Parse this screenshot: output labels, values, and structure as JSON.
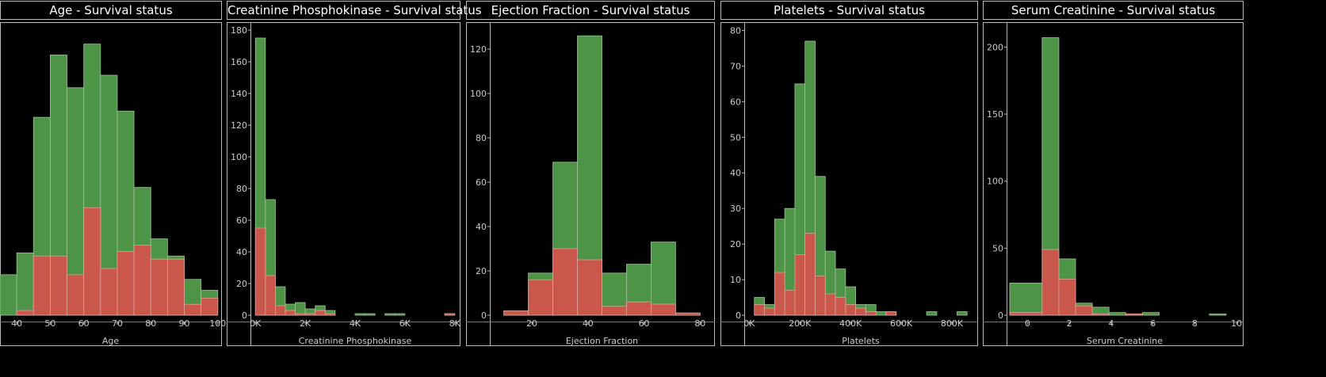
{
  "colors": {
    "survived": "#4e9447",
    "died": "#c9574c"
  },
  "chart_data": [
    {
      "type": "bar",
      "title": "Age - Survival status",
      "xlabel": "Age",
      "xlim": [
        35,
        101
      ],
      "ylim": [
        0,
        185
      ],
      "x_ticks": [
        40,
        50,
        60,
        70,
        80,
        90,
        100
      ],
      "bin_edges": [
        35,
        40,
        45,
        50,
        55,
        60,
        65,
        70,
        75,
        80,
        85,
        90,
        95,
        100
      ],
      "series": [
        {
          "values": [
            26,
            40,
            127,
            167,
            146,
            174,
            154,
            131,
            82,
            49,
            38,
            23,
            16
          ]
        },
        {
          "values": [
            0,
            3,
            38,
            38,
            26,
            69,
            30,
            41,
            45,
            36,
            36,
            7,
            11
          ]
        }
      ]
    },
    {
      "type": "bar",
      "title": "Creatinine Phosphokinase  - Survival status",
      "xlabel": "Creatinine Phosphokinase",
      "xlim": [
        -200,
        8200
      ],
      "ylim": [
        0,
        182
      ],
      "y_ticks": [
        0,
        20,
        40,
        60,
        80,
        100,
        120,
        140,
        160,
        180
      ],
      "x_ticks": [
        {
          "v": 0,
          "label": "0K"
        },
        {
          "v": 2000,
          "label": "2K"
        },
        {
          "v": 4000,
          "label": "4K"
        },
        {
          "v": 6000,
          "label": "6K"
        },
        {
          "v": 8000,
          "label": "8K"
        }
      ],
      "bin_edges": [
        0,
        400,
        800,
        1200,
        1600,
        2000,
        2400,
        2800,
        3200,
        3600,
        4000,
        4400,
        4800,
        5200,
        5600,
        6000,
        6400,
        6800,
        7200,
        7600,
        8000
      ],
      "series": [
        {
          "values": [
            175,
            73,
            18,
            7,
            8,
            4,
            6,
            3,
            0,
            0,
            1,
            1,
            0,
            1,
            1,
            0,
            0,
            0,
            0,
            1
          ]
        },
        {
          "values": [
            55,
            25,
            6,
            3,
            1,
            1,
            3,
            1,
            0,
            0,
            0,
            0,
            0,
            0,
            0,
            0,
            0,
            0,
            0,
            1
          ]
        }
      ]
    },
    {
      "type": "bar",
      "title": "Ejection Fraction  - Survival status",
      "xlabel": "Ejection Fraction",
      "xlim": [
        5,
        85
      ],
      "ylim": [
        0,
        130
      ],
      "y_ticks": [
        0,
        20,
        40,
        60,
        80,
        100,
        120
      ],
      "x_ticks": [
        20,
        40,
        60,
        80
      ],
      "bin_edges": [
        10,
        18.75,
        27.5,
        36.25,
        45,
        53.75,
        62.5,
        71.25,
        80
      ],
      "series": [
        {
          "values": [
            2,
            19,
            69,
            126,
            19,
            23,
            33,
            1
          ]
        },
        {
          "values": [
            2,
            16,
            30,
            25,
            4,
            6,
            5,
            1
          ]
        }
      ]
    },
    {
      "type": "bar",
      "title": "Platelets  - Survival status",
      "xlabel": "Platelets",
      "xlim": [
        -20000,
        900000
      ],
      "ylim": [
        0,
        81
      ],
      "y_ticks": [
        0,
        10,
        20,
        30,
        40,
        50,
        60,
        70,
        80
      ],
      "x_ticks": [
        {
          "v": 0,
          "label": "0K"
        },
        {
          "v": 200000,
          "label": "200K"
        },
        {
          "v": 400000,
          "label": "400K"
        },
        {
          "v": 600000,
          "label": "600K"
        },
        {
          "v": 800000,
          "label": "800K"
        }
      ],
      "bin_edges": [
        20000,
        60000,
        100000,
        140000,
        180000,
        220000,
        260000,
        300000,
        340000,
        380000,
        420000,
        460000,
        500000,
        540000,
        580000,
        620000,
        660000,
        700000,
        740000,
        780000,
        820000,
        860000
      ],
      "series": [
        {
          "values": [
            5,
            3,
            27,
            30,
            65,
            77,
            39,
            18,
            13,
            8,
            3,
            3,
            1,
            1,
            0,
            0,
            0,
            1,
            0,
            0,
            1
          ]
        },
        {
          "values": [
            3,
            2,
            12,
            7,
            17,
            23,
            11,
            6,
            5,
            3,
            2,
            1,
            0,
            1,
            0,
            0,
            0,
            0,
            0,
            0,
            0
          ]
        }
      ]
    },
    {
      "type": "bar",
      "title": "Serum Creatinine  - Survival status",
      "xlabel": "Serum Creatinine",
      "xlim": [
        -1,
        10.3
      ],
      "ylim": [
        0,
        215
      ],
      "y_ticks": [
        0,
        50,
        100,
        150,
        200
      ],
      "x_ticks": [
        0,
        2,
        4,
        6,
        8,
        10
      ],
      "bin_edges": [
        -0.85,
        0.7,
        1.5,
        2.3,
        3.1,
        3.9,
        4.7,
        5.5,
        6.3,
        7.1,
        7.9,
        8.7,
        9.5
      ],
      "series": [
        {
          "values": [
            24,
            207,
            42,
            9,
            6,
            2,
            1,
            2,
            0,
            0,
            0,
            1
          ]
        },
        {
          "values": [
            2,
            49,
            27,
            7,
            1,
            0,
            1,
            0,
            0,
            0,
            0,
            0
          ]
        }
      ]
    }
  ]
}
